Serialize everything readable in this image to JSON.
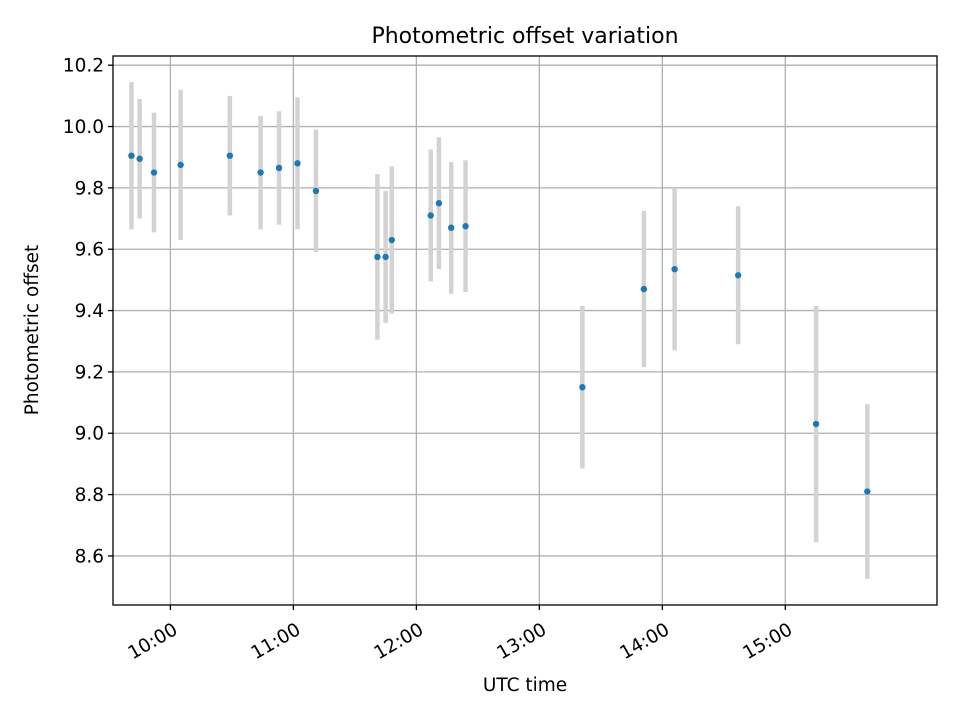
{
  "chart_data": {
    "type": "scatter",
    "title": "Photometric offset variation",
    "xlabel": "UTC time",
    "ylabel": "Photometric offset",
    "x_type": "time",
    "xlim": [
      "09:32",
      "16:14"
    ],
    "ylim": [
      8.44,
      10.23
    ],
    "x_ticks": [
      "10:00",
      "11:00",
      "12:00",
      "13:00",
      "14:00",
      "15:00"
    ],
    "y_ticks": [
      8.6,
      8.8,
      9.0,
      9.2,
      9.4,
      9.6,
      9.8,
      10.0,
      10.2
    ],
    "y_tick_labels": [
      "8.6",
      "8.8",
      "9.0",
      "9.2",
      "9.4",
      "9.6",
      "9.8",
      "10.0",
      "10.2"
    ],
    "grid": true,
    "marker_color": "#1f77b4",
    "errorbar_color": "#d3d3d3",
    "points": [
      {
        "x": "09:41",
        "y": 9.905,
        "err": 0.24
      },
      {
        "x": "09:45",
        "y": 9.895,
        "err": 0.195
      },
      {
        "x": "09:52",
        "y": 9.85,
        "err": 0.195
      },
      {
        "x": "10:05",
        "y": 9.875,
        "err": 0.245
      },
      {
        "x": "10:29",
        "y": 9.905,
        "err": 0.195
      },
      {
        "x": "10:44",
        "y": 9.85,
        "err": 0.185
      },
      {
        "x": "10:53",
        "y": 9.865,
        "err": 0.185
      },
      {
        "x": "11:02",
        "y": 9.88,
        "err": 0.215
      },
      {
        "x": "11:11",
        "y": 9.79,
        "err": 0.2
      },
      {
        "x": "11:41",
        "y": 9.575,
        "err": 0.27
      },
      {
        "x": "11:45",
        "y": 9.575,
        "err": 0.215
      },
      {
        "x": "11:48",
        "y": 9.63,
        "err": 0.24
      },
      {
        "x": "12:07",
        "y": 9.71,
        "err": 0.215
      },
      {
        "x": "12:11",
        "y": 9.75,
        "err": 0.215
      },
      {
        "x": "12:17",
        "y": 9.67,
        "err": 0.215
      },
      {
        "x": "12:24",
        "y": 9.675,
        "err": 0.215
      },
      {
        "x": "13:21",
        "y": 9.15,
        "err": 0.265
      },
      {
        "x": "13:51",
        "y": 9.47,
        "err": 0.255
      },
      {
        "x": "14:06",
        "y": 9.535,
        "err": 0.265
      },
      {
        "x": "14:37",
        "y": 9.515,
        "err": 0.225
      },
      {
        "x": "15:15",
        "y": 9.03,
        "err": 0.385
      },
      {
        "x": "15:40",
        "y": 8.81,
        "err": 0.285
      }
    ]
  }
}
